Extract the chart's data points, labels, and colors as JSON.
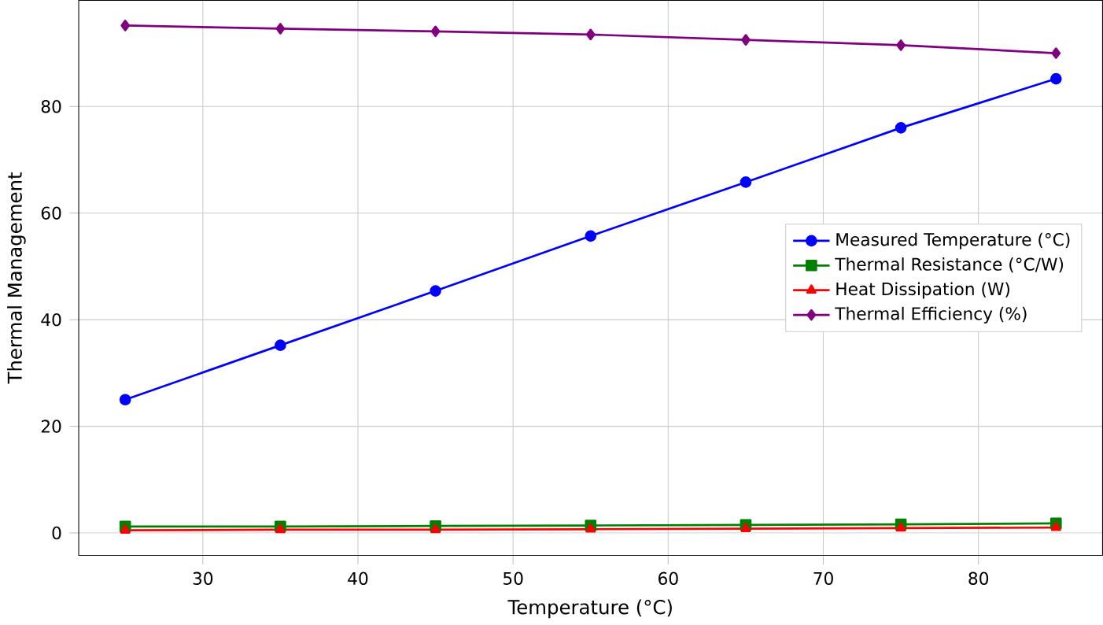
{
  "chart_data": {
    "type": "line",
    "xlabel": "Temperature (°C)",
    "ylabel": "Thermal Management",
    "x": [
      25,
      35,
      45,
      55,
      65,
      75,
      85
    ],
    "series": [
      {
        "name": "Measured Temperature (°C)",
        "color": "#0000ff",
        "marker": "circle",
        "values": [
          25,
          35.2,
          45.4,
          55.7,
          65.8,
          76,
          85.2
        ]
      },
      {
        "name": "Thermal Resistance (°C/W)",
        "color": "#008000",
        "marker": "square",
        "values": [
          1.2,
          1.2,
          1.3,
          1.4,
          1.5,
          1.6,
          1.8
        ]
      },
      {
        "name": "Heat Dissipation (W)",
        "color": "#ff0000",
        "marker": "triangle",
        "values": [
          0.5,
          0.6,
          0.6,
          0.7,
          0.8,
          0.9,
          1.0
        ]
      },
      {
        "name": "Thermal Efficiency (%)",
        "color": "#800080",
        "marker": "diamond",
        "values": [
          95.2,
          94.6,
          94.1,
          93.5,
          92.5,
          91.5,
          90
        ]
      }
    ],
    "xlim": [
      22,
      88
    ],
    "ylim": [
      -4.2,
      99.9
    ],
    "xticks": [
      30,
      40,
      50,
      60,
      70,
      80
    ],
    "yticks": [
      0,
      20,
      40,
      60,
      80
    ],
    "grid": true,
    "legend": "center right",
    "line_style": "solid"
  }
}
